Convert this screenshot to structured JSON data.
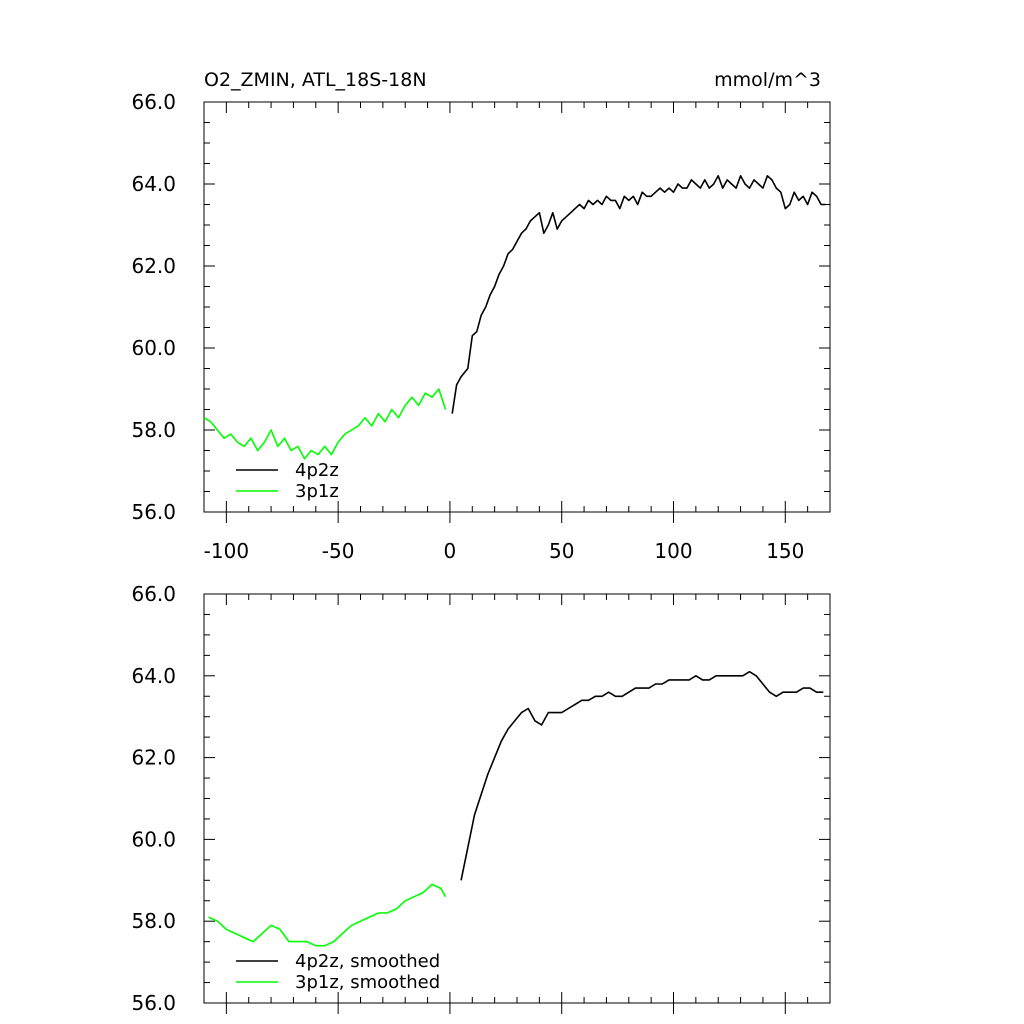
{
  "header": {
    "title": "O2_ZMIN, ATL_18S-18N",
    "units": "mmol/m^3"
  },
  "colors": {
    "series_4p2z": "#000000",
    "series_3p1z": "#00ff00"
  },
  "chart_data": [
    {
      "type": "line",
      "xlim": [
        -110,
        170
      ],
      "ylim": [
        56.0,
        66.0
      ],
      "x_ticks": [
        "-100",
        "-50",
        "0",
        "50",
        "100",
        "150"
      ],
      "y_ticks": [
        "56.0",
        "58.0",
        "60.0",
        "62.0",
        "64.0",
        "66.0"
      ],
      "legend_placement": "bottom-left",
      "series": [
        {
          "name": "4p2z",
          "color": "#000000",
          "x": [
            1,
            3,
            5,
            8,
            10,
            12,
            14,
            16,
            18,
            20,
            22,
            24,
            26,
            28,
            30,
            32,
            34,
            36,
            38,
            40,
            42,
            44,
            46,
            48,
            50,
            52,
            54,
            56,
            58,
            60,
            62,
            64,
            66,
            68,
            70,
            72,
            74,
            76,
            78,
            80,
            82,
            84,
            86,
            88,
            90,
            92,
            94,
            96,
            98,
            100,
            102,
            104,
            106,
            108,
            110,
            112,
            114,
            116,
            118,
            120,
            122,
            124,
            126,
            128,
            130,
            132,
            134,
            136,
            138,
            140,
            142,
            144,
            146,
            148,
            150,
            152,
            154,
            156,
            158,
            160,
            162,
            164,
            166,
            168
          ],
          "values": [
            58.4,
            59.1,
            59.3,
            59.5,
            60.3,
            60.4,
            60.8,
            61.0,
            61.3,
            61.5,
            61.8,
            62.0,
            62.3,
            62.4,
            62.6,
            62.8,
            62.9,
            63.1,
            63.2,
            63.3,
            62.8,
            63.0,
            63.3,
            62.9,
            63.1,
            63.2,
            63.3,
            63.4,
            63.5,
            63.4,
            63.6,
            63.5,
            63.6,
            63.5,
            63.7,
            63.6,
            63.6,
            63.4,
            63.7,
            63.6,
            63.7,
            63.5,
            63.8,
            63.7,
            63.7,
            63.8,
            63.9,
            63.8,
            63.9,
            63.8,
            64.0,
            63.9,
            63.9,
            64.1,
            64.0,
            63.9,
            64.1,
            63.9,
            64.0,
            64.2,
            63.9,
            64.1,
            64.0,
            63.9,
            64.2,
            64.0,
            63.9,
            64.1,
            64.0,
            63.9,
            64.2,
            64.1,
            63.9,
            63.8,
            63.4,
            63.5,
            63.8,
            63.6,
            63.7,
            63.5,
            63.8,
            63.7,
            63.5,
            63.5
          ]
        },
        {
          "name": "3p1z",
          "color": "#00ff00",
          "x": [
            -110,
            -107,
            -104,
            -101,
            -98,
            -95,
            -92,
            -89,
            -86,
            -83,
            -80,
            -77,
            -74,
            -71,
            -68,
            -65,
            -62,
            -59,
            -56,
            -53,
            -50,
            -47,
            -44,
            -41,
            -38,
            -35,
            -32,
            -29,
            -26,
            -23,
            -20,
            -17,
            -14,
            -11,
            -8,
            -5,
            -2
          ],
          "values": [
            58.3,
            58.2,
            58.0,
            57.8,
            57.9,
            57.7,
            57.6,
            57.8,
            57.5,
            57.7,
            58.0,
            57.6,
            57.8,
            57.5,
            57.6,
            57.3,
            57.5,
            57.4,
            57.6,
            57.4,
            57.7,
            57.9,
            58.0,
            58.1,
            58.3,
            58.1,
            58.4,
            58.2,
            58.5,
            58.3,
            58.6,
            58.8,
            58.6,
            58.9,
            58.8,
            59.0,
            58.5
          ]
        }
      ]
    },
    {
      "type": "line",
      "xlim": [
        -110,
        170
      ],
      "ylim": [
        56.0,
        66.0
      ],
      "y_ticks": [
        "56.0",
        "58.0",
        "60.0",
        "62.0",
        "64.0",
        "66.0"
      ],
      "legend_placement": "bottom-left",
      "series": [
        {
          "name": "4p2z, smoothed",
          "color": "#000000",
          "x": [
            5,
            8,
            11,
            14,
            17,
            20,
            23,
            26,
            29,
            32,
            35,
            38,
            41,
            44,
            47,
            50,
            53,
            56,
            59,
            62,
            65,
            68,
            71,
            74,
            77,
            80,
            83,
            86,
            89,
            92,
            95,
            98,
            101,
            104,
            107,
            110,
            113,
            116,
            119,
            122,
            125,
            128,
            131,
            134,
            137,
            140,
            143,
            146,
            149,
            152,
            155,
            158,
            161,
            164,
            167
          ],
          "values": [
            59.0,
            59.8,
            60.6,
            61.1,
            61.6,
            62.0,
            62.4,
            62.7,
            62.9,
            63.1,
            63.2,
            62.9,
            62.8,
            63.1,
            63.1,
            63.1,
            63.2,
            63.3,
            63.4,
            63.4,
            63.5,
            63.5,
            63.6,
            63.5,
            63.5,
            63.6,
            63.7,
            63.7,
            63.7,
            63.8,
            63.8,
            63.9,
            63.9,
            63.9,
            63.9,
            64.0,
            63.9,
            63.9,
            64.0,
            64.0,
            64.0,
            64.0,
            64.0,
            64.1,
            64.0,
            63.8,
            63.6,
            63.5,
            63.6,
            63.6,
            63.6,
            63.7,
            63.7,
            63.6,
            63.6
          ]
        },
        {
          "name": "3p1z, smoothed",
          "color": "#00ff00",
          "x": [
            -108,
            -104,
            -100,
            -96,
            -92,
            -88,
            -84,
            -80,
            -76,
            -72,
            -68,
            -64,
            -60,
            -56,
            -52,
            -48,
            -44,
            -40,
            -36,
            -32,
            -28,
            -24,
            -20,
            -16,
            -12,
            -8,
            -4,
            -2
          ],
          "values": [
            58.1,
            58.0,
            57.8,
            57.7,
            57.6,
            57.5,
            57.7,
            57.9,
            57.8,
            57.5,
            57.5,
            57.5,
            57.4,
            57.4,
            57.5,
            57.7,
            57.9,
            58.0,
            58.1,
            58.2,
            58.2,
            58.3,
            58.5,
            58.6,
            58.7,
            58.9,
            58.8,
            58.6
          ]
        }
      ]
    }
  ]
}
